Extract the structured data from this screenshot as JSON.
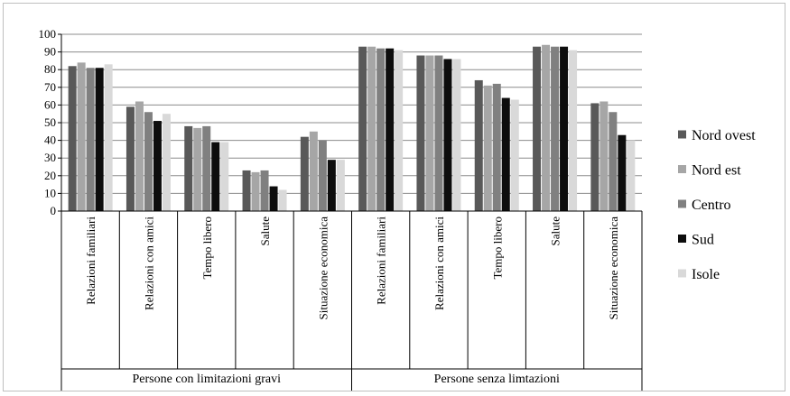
{
  "chart_data": {
    "type": "bar",
    "title": "",
    "xlabel": "",
    "ylabel": "",
    "ylim": [
      0,
      100
    ],
    "yticks": [
      0,
      10,
      20,
      30,
      40,
      50,
      60,
      70,
      80,
      90,
      100
    ],
    "grid": "horizontal",
    "legend_position": "right",
    "groups": [
      {
        "label": "Persone con limitazioni gravi",
        "categories": [
          "Relazioni familiari",
          "Relazioni con amici",
          "Tempo libero",
          "Salute",
          "Situazione economica"
        ]
      },
      {
        "label": "Persone senza limtazioni",
        "categories": [
          "Relazioni familiari",
          "Relazioni con amici",
          "Tempo libero",
          "Salute",
          "Situazione economica"
        ]
      }
    ],
    "categories": [
      "Relazioni familiari",
      "Relazioni con amici",
      "Tempo libero",
      "Salute",
      "Situazione economica",
      "Relazioni familiari",
      "Relazioni con amici",
      "Tempo libero",
      "Salute",
      "Situazione economica"
    ],
    "series": [
      {
        "name": "Nord ovest",
        "color": "#595959",
        "values": [
          82,
          59,
          48,
          23,
          42,
          93,
          88,
          74,
          93,
          61
        ]
      },
      {
        "name": "Nord est",
        "color": "#a6a6a6",
        "values": [
          84,
          62,
          47,
          22,
          45,
          93,
          88,
          71,
          94,
          62
        ]
      },
      {
        "name": "Centro",
        "color": "#808080",
        "values": [
          81,
          56,
          48,
          23,
          40,
          92,
          88,
          72,
          93,
          56
        ]
      },
      {
        "name": "Sud",
        "color": "#0d0d0d",
        "values": [
          81,
          51,
          39,
          14,
          29,
          92,
          86,
          64,
          93,
          43
        ]
      },
      {
        "name": "Isole",
        "color": "#d9d9d9",
        "values": [
          83,
          55,
          39,
          12,
          29,
          91,
          86,
          63,
          91,
          40
        ]
      }
    ]
  }
}
